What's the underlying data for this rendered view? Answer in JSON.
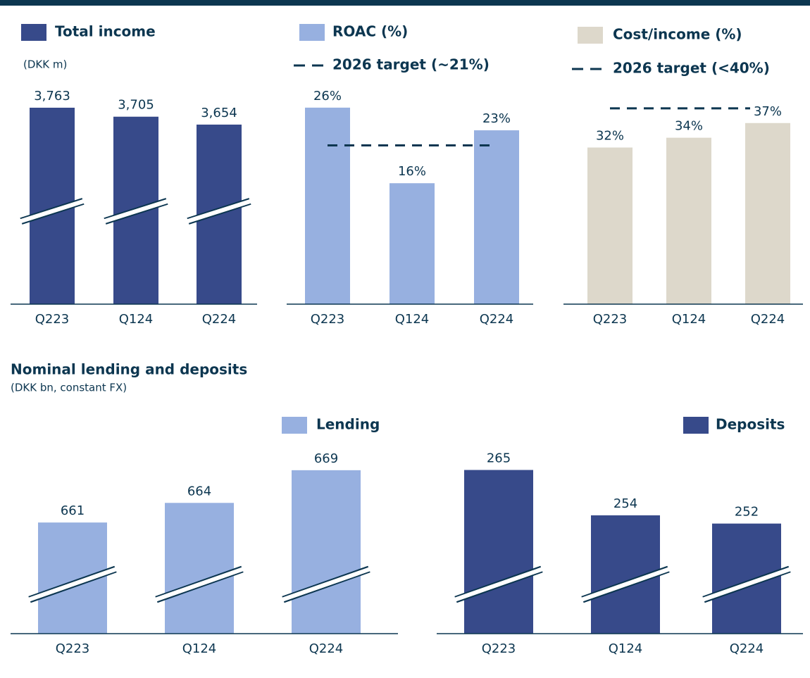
{
  "chart_data": [
    {
      "type": "bar",
      "name": "Total income",
      "subtitle": "(DKK m)",
      "categories": [
        "Q223",
        "Q124",
        "Q224"
      ],
      "values": [
        3763,
        3705,
        3654
      ],
      "value_labels": [
        "3,763",
        "3,705",
        "3,654"
      ],
      "color": "#374a8a",
      "ylim": [
        2495,
        3822
      ],
      "axis_break": true
    },
    {
      "type": "bar",
      "name": "ROAC (%)",
      "categories": [
        "Q223",
        "Q124",
        "Q224"
      ],
      "values": [
        26,
        16,
        23
      ],
      "value_labels": [
        "26%",
        "16%",
        "23%"
      ],
      "color": "#97b0e0",
      "ylim": [
        0,
        27.2
      ],
      "target": 21,
      "target_label": "2026 target (~21%)"
    },
    {
      "type": "bar",
      "name": "Cost/income (%)",
      "categories": [
        "Q223",
        "Q124",
        "Q224"
      ],
      "values": [
        32,
        34,
        37
      ],
      "value_labels": [
        "32%",
        "34%",
        "37%"
      ],
      "color": "#ddd8cb",
      "ylim": [
        0,
        42
      ],
      "target": 40,
      "target_label": "2026 target (<40%)"
    },
    {
      "type": "bar",
      "name": "Lending",
      "categories": [
        "Q223",
        "Q124",
        "Q224"
      ],
      "values": [
        661,
        664,
        669
      ],
      "color": "#97b0e0",
      "ylim": [
        644,
        672
      ],
      "axis_break": true
    },
    {
      "type": "bar",
      "name": "Deposits",
      "categories": [
        "Q223",
        "Q124",
        "Q224"
      ],
      "values": [
        265,
        254,
        252
      ],
      "color": "#374a8a",
      "ylim": [
        225.3,
        269.7
      ],
      "axis_break": true
    }
  ],
  "section": {
    "title": "Nominal lending and deposits",
    "subtitle": "(DKK bn, constant FX)"
  }
}
